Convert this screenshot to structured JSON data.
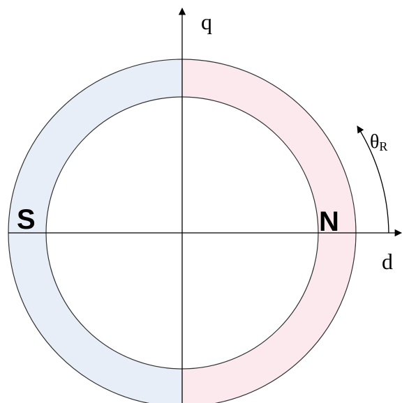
{
  "axes": {
    "q": "q",
    "d": "d"
  },
  "angle": {
    "symbol": "θ",
    "subscript": "R"
  },
  "poles": {
    "south": "S",
    "north": "N"
  }
}
